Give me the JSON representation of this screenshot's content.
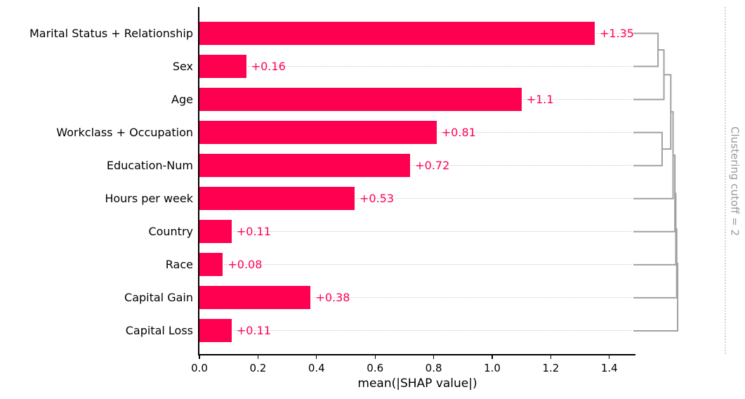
{
  "chart_data": {
    "type": "bar",
    "orientation": "horizontal",
    "title": "",
    "xlabel": "mean(|SHAP value|)",
    "ylabel": "",
    "categories": [
      "Marital Status + Relationship",
      "Sex",
      "Age",
      "Workclass + Occupation",
      "Education-Num",
      "Hours per week",
      "Country",
      "Race",
      "Capital Gain",
      "Capital Loss"
    ],
    "values": [
      1.35,
      0.16,
      1.1,
      0.81,
      0.72,
      0.53,
      0.11,
      0.08,
      0.38,
      0.11
    ],
    "value_labels": [
      "+1.35",
      "+0.16",
      "+1.1",
      "+0.81",
      "+0.72",
      "+0.53",
      "+0.11",
      "+0.08",
      "+0.38",
      "+0.11"
    ],
    "xticks": [
      0.0,
      0.2,
      0.4,
      0.6,
      0.8,
      1.0,
      1.2,
      1.4
    ],
    "xtick_labels": [
      "0.0",
      "0.2",
      "0.4",
      "0.6",
      "0.8",
      "1.0",
      "1.2",
      "1.4"
    ],
    "xlim": [
      0,
      1.49
    ],
    "grid": false,
    "legend": null,
    "clustering": {
      "label": "Clustering cutoff = 2",
      "cutoff": 2,
      "merges": [
        {
          "a": {
            "leaf": 0
          },
          "b": {
            "leaf": 1
          },
          "distance": 0.54
        },
        {
          "a": {
            "merge": 0
          },
          "b": {
            "leaf": 2
          },
          "distance": 0.67
        },
        {
          "a": {
            "leaf": 3
          },
          "b": {
            "leaf": 4
          },
          "distance": 0.63
        },
        {
          "a": {
            "merge": 1
          },
          "b": {
            "merge": 2
          },
          "distance": 0.82
        },
        {
          "a": {
            "merge": 3
          },
          "b": {
            "leaf": 5
          },
          "distance": 0.87
        },
        {
          "a": {
            "merge": 4
          },
          "b": {
            "leaf": 6
          },
          "distance": 0.91
        },
        {
          "a": {
            "merge": 5
          },
          "b": {
            "leaf": 7
          },
          "distance": 0.93
        },
        {
          "a": {
            "merge": 6
          },
          "b": {
            "leaf": 8
          },
          "distance": 0.95
        },
        {
          "a": {
            "merge": 7
          },
          "b": {
            "leaf": 9
          },
          "distance": 0.97
        }
      ]
    },
    "colors": {
      "bar": "#ff0051",
      "value_label": "#ff0051",
      "dendrogram": "#a0a0a0",
      "leader_dots": "#c9c9c9",
      "cutoff_line": "#d4d4d4",
      "cutoff_text": "#999999",
      "axis": "#000000",
      "text": "#000000"
    }
  }
}
